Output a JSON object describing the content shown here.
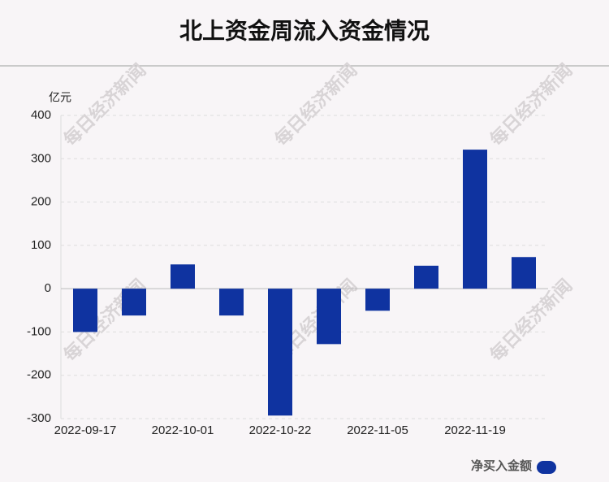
{
  "chart_data": {
    "type": "bar",
    "title": "北上资金周流入资金情况",
    "y_unit": "亿元",
    "categories": [
      "2022-09-17",
      null,
      "2022-10-01",
      null,
      "2022-10-22",
      null,
      "2022-11-05",
      null,
      "2022-11-19",
      null
    ],
    "series": [
      {
        "name": "净买入金额",
        "color": "#0f33a0",
        "values": [
          -100,
          -62,
          56,
          -62,
          -293,
          -128,
          -51,
          53,
          321,
          73
        ]
      }
    ],
    "ylim": [
      -300,
      400
    ],
    "yticks": [
      -300,
      -200,
      -100,
      0,
      100,
      200,
      300,
      400
    ],
    "grid": true,
    "legend": "bottom-right",
    "watermark": "每日经济新闻"
  }
}
